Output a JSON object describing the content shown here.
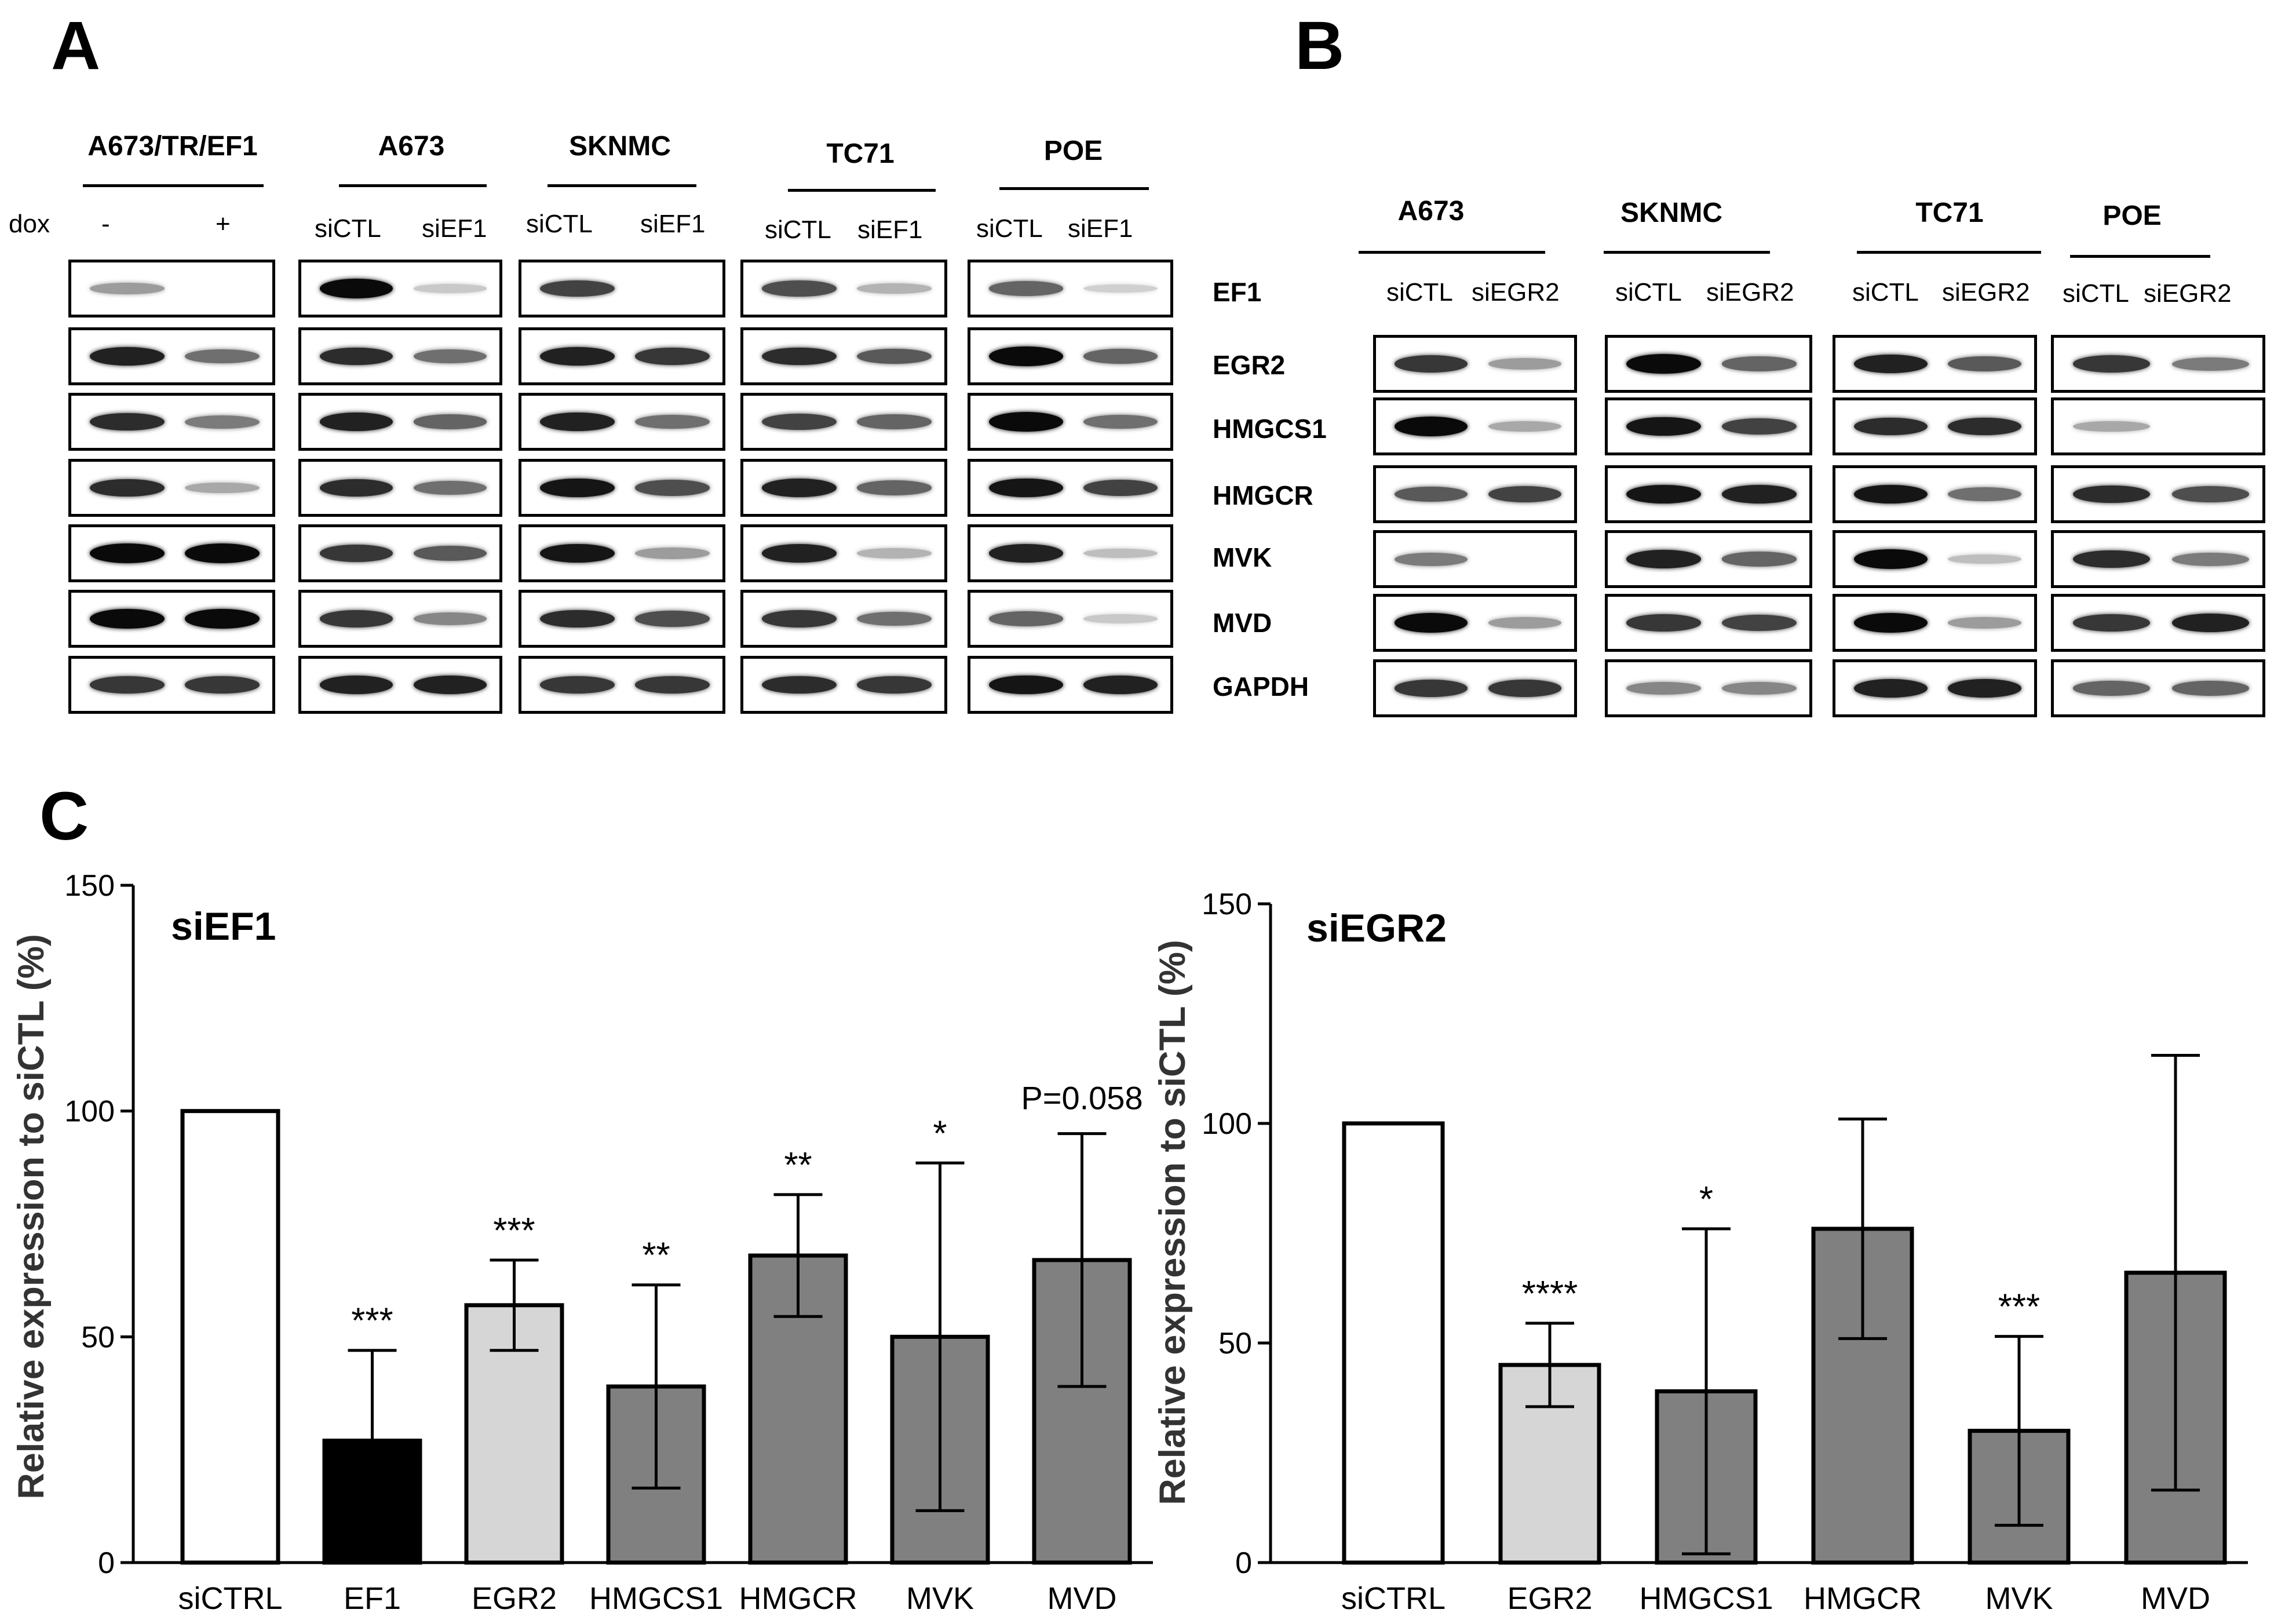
{
  "figure": {
    "panel_a": {
      "letter": "A"
    },
    "panel_b": {
      "letter": "B"
    },
    "panel_c": {
      "letter": "C"
    }
  },
  "blots_a": {
    "dox_label": "dox",
    "groups": [
      {
        "name": "A673/TR/EF1",
        "lanes": [
          "-",
          "+"
        ]
      },
      {
        "name": "A673",
        "lanes": [
          "siCTL",
          "siEF1"
        ]
      },
      {
        "name": "SKNMC",
        "lanes": [
          "siCTL",
          "siEF1"
        ]
      },
      {
        "name": "TC71",
        "lanes": [
          "siCTL",
          "siEF1"
        ]
      },
      {
        "name": "POE",
        "lanes": [
          "siCTL",
          "siEF1"
        ]
      }
    ],
    "proteins": [
      "EF1",
      "EGR2",
      "HMGCS1",
      "HMGCR",
      "MVK",
      "MVD",
      "GAPDH"
    ]
  },
  "blots_b": {
    "groups": [
      {
        "name": "A673",
        "lanes": [
          "siCTL",
          "siEGR2"
        ]
      },
      {
        "name": "SKNMC",
        "lanes": [
          "siCTL",
          "siEGR2"
        ]
      },
      {
        "name": "TC71",
        "lanes": [
          "siCTL",
          "siEGR2"
        ]
      },
      {
        "name": "POE",
        "lanes": [
          "siCTL",
          "siEGR2"
        ]
      }
    ],
    "proteins": [
      "EGR2",
      "HMGCS1",
      "HMGCR",
      "MVK",
      "MVD",
      "GAPDH"
    ]
  },
  "chart_data": [
    {
      "type": "bar",
      "title": "siEF1",
      "ylabel": "Relative expression to siCTL (%)",
      "xlabel": "",
      "ylim": [
        0,
        150
      ],
      "yticks": [
        0,
        50,
        100,
        150
      ],
      "categories": [
        "siCTRL",
        "EF1",
        "EGR2",
        "HMGCS1",
        "HMGCR",
        "MVK",
        "MVD"
      ],
      "values": [
        100,
        27,
        57,
        39,
        68,
        50,
        67
      ],
      "errors": [
        0,
        20,
        10,
        22.5,
        13.5,
        38.5,
        28
      ],
      "colors": [
        "#ffffff",
        "#000000",
        "#d6d6d6",
        "#808080",
        "#808080",
        "#808080",
        "#808080"
      ],
      "annotations": [
        "",
        "***",
        "***",
        "**",
        "**",
        "*",
        "P=0.058"
      ]
    },
    {
      "type": "bar",
      "title": "siEGR2",
      "ylabel": "Relative expression to siCTL (%)",
      "xlabel": "",
      "ylim": [
        0,
        150
      ],
      "yticks": [
        0,
        50,
        100,
        150
      ],
      "categories": [
        "siCTRL",
        "EGR2",
        "HMGCS1",
        "HMGCR",
        "MVK",
        "MVD"
      ],
      "values": [
        100,
        45,
        39,
        76,
        30,
        66
      ],
      "errors": [
        0,
        9.5,
        37,
        25,
        21.5,
        49.5
      ],
      "colors": [
        "#ffffff",
        "#d6d6d6",
        "#808080",
        "#808080",
        "#808080",
        "#808080"
      ],
      "annotations": [
        "",
        "****",
        "*",
        "",
        "***",
        ""
      ]
    }
  ]
}
